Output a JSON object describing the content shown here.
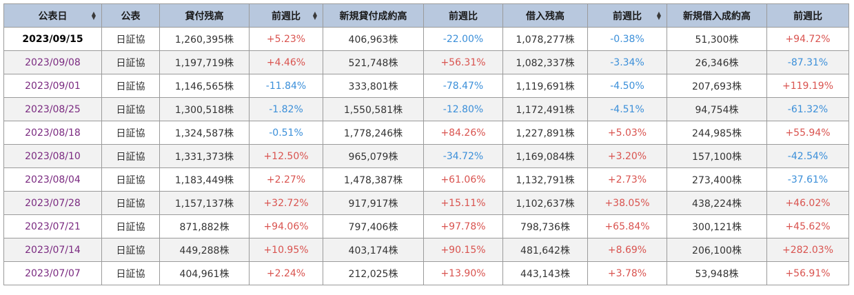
{
  "headers": [
    "公表日",
    "公表",
    "貸付残高",
    "前週比",
    "新規貸付成約高",
    "前週比",
    "借入残高",
    "前週比",
    "新規借入成約高",
    "前週比"
  ],
  "sortable": [
    true,
    false,
    false,
    true,
    false,
    false,
    false,
    true,
    false,
    false
  ],
  "rows": [
    {
      "date": "2023/09/15",
      "source": "日証協",
      "loan_balance": "1,260,395株",
      "loan_change": "+5.23%",
      "new_loan": "406,963株",
      "new_loan_change": "-22.00%",
      "borrow_balance": "1,078,277株",
      "borrow_change": "-0.38%",
      "new_borrow": "51,300株",
      "new_borrow_change": "+94.72%"
    },
    {
      "date": "2023/09/08",
      "source": "日証協",
      "loan_balance": "1,197,719株",
      "loan_change": "+4.46%",
      "new_loan": "521,748株",
      "new_loan_change": "+56.31%",
      "borrow_balance": "1,082,337株",
      "borrow_change": "-3.34%",
      "new_borrow": "26,346株",
      "new_borrow_change": "-87.31%"
    },
    {
      "date": "2023/09/01",
      "source": "日証協",
      "loan_balance": "1,146,565株",
      "loan_change": "-11.84%",
      "new_loan": "333,801株",
      "new_loan_change": "-78.47%",
      "borrow_balance": "1,119,691株",
      "borrow_change": "-4.50%",
      "new_borrow": "207,693株",
      "new_borrow_change": "+119.19%"
    },
    {
      "date": "2023/08/25",
      "source": "日証協",
      "loan_balance": "1,300,518株",
      "loan_change": "-1.82%",
      "new_loan": "1,550,581株",
      "new_loan_change": "-12.80%",
      "borrow_balance": "1,172,491株",
      "borrow_change": "-4.51%",
      "new_borrow": "94,754株",
      "new_borrow_change": "-61.32%"
    },
    {
      "date": "2023/08/18",
      "source": "日証協",
      "loan_balance": "1,324,587株",
      "loan_change": "-0.51%",
      "new_loan": "1,778,246株",
      "new_loan_change": "+84.26%",
      "borrow_balance": "1,227,891株",
      "borrow_change": "+5.03%",
      "new_borrow": "244,985株",
      "new_borrow_change": "+55.94%"
    },
    {
      "date": "2023/08/10",
      "source": "日証協",
      "loan_balance": "1,331,373株",
      "loan_change": "+12.50%",
      "new_loan": "965,079株",
      "new_loan_change": "-34.72%",
      "borrow_balance": "1,169,084株",
      "borrow_change": "+3.20%",
      "new_borrow": "157,100株",
      "new_borrow_change": "-42.54%"
    },
    {
      "date": "2023/08/04",
      "source": "日証協",
      "loan_balance": "1,183,449株",
      "loan_change": "+2.27%",
      "new_loan": "1,478,387株",
      "new_loan_change": "+61.06%",
      "borrow_balance": "1,132,791株",
      "borrow_change": "+2.73%",
      "new_borrow": "273,400株",
      "new_borrow_change": "-37.61%"
    },
    {
      "date": "2023/07/28",
      "source": "日証協",
      "loan_balance": "1,157,137株",
      "loan_change": "+32.72%",
      "new_loan": "917,917株",
      "new_loan_change": "+15.11%",
      "borrow_balance": "1,102,637株",
      "borrow_change": "+38.05%",
      "new_borrow": "438,224株",
      "new_borrow_change": "+46.02%"
    },
    {
      "date": "2023/07/21",
      "source": "日証協",
      "loan_balance": "871,882株",
      "loan_change": "+94.06%",
      "new_loan": "797,406株",
      "new_loan_change": "+97.78%",
      "borrow_balance": "798,736株",
      "borrow_change": "+65.84%",
      "new_borrow": "300,121株",
      "new_borrow_change": "+45.62%"
    },
    {
      "date": "2023/07/14",
      "source": "日証協",
      "loan_balance": "449,288株",
      "loan_change": "+10.95%",
      "new_loan": "403,174株",
      "new_loan_change": "+90.15%",
      "borrow_balance": "481,642株",
      "borrow_change": "+8.69%",
      "new_borrow": "206,100株",
      "new_borrow_change": "+282.03%"
    },
    {
      "date": "2023/07/07",
      "source": "日証協",
      "loan_balance": "404,961株",
      "loan_change": "+2.24%",
      "new_loan": "212,025株",
      "new_loan_change": "+13.90%",
      "borrow_balance": "443,143株",
      "borrow_change": "+3.78%",
      "new_borrow": "53,948株",
      "new_borrow_change": "+56.91%"
    }
  ],
  "colors": {
    "header_bg": "#b8c8de",
    "positive": "#d9534f",
    "negative": "#3b8fd9",
    "date": "#7a2a80",
    "alt_row": "#f2f2f2"
  },
  "icons": {
    "sort": "sort-arrows-icon"
  }
}
